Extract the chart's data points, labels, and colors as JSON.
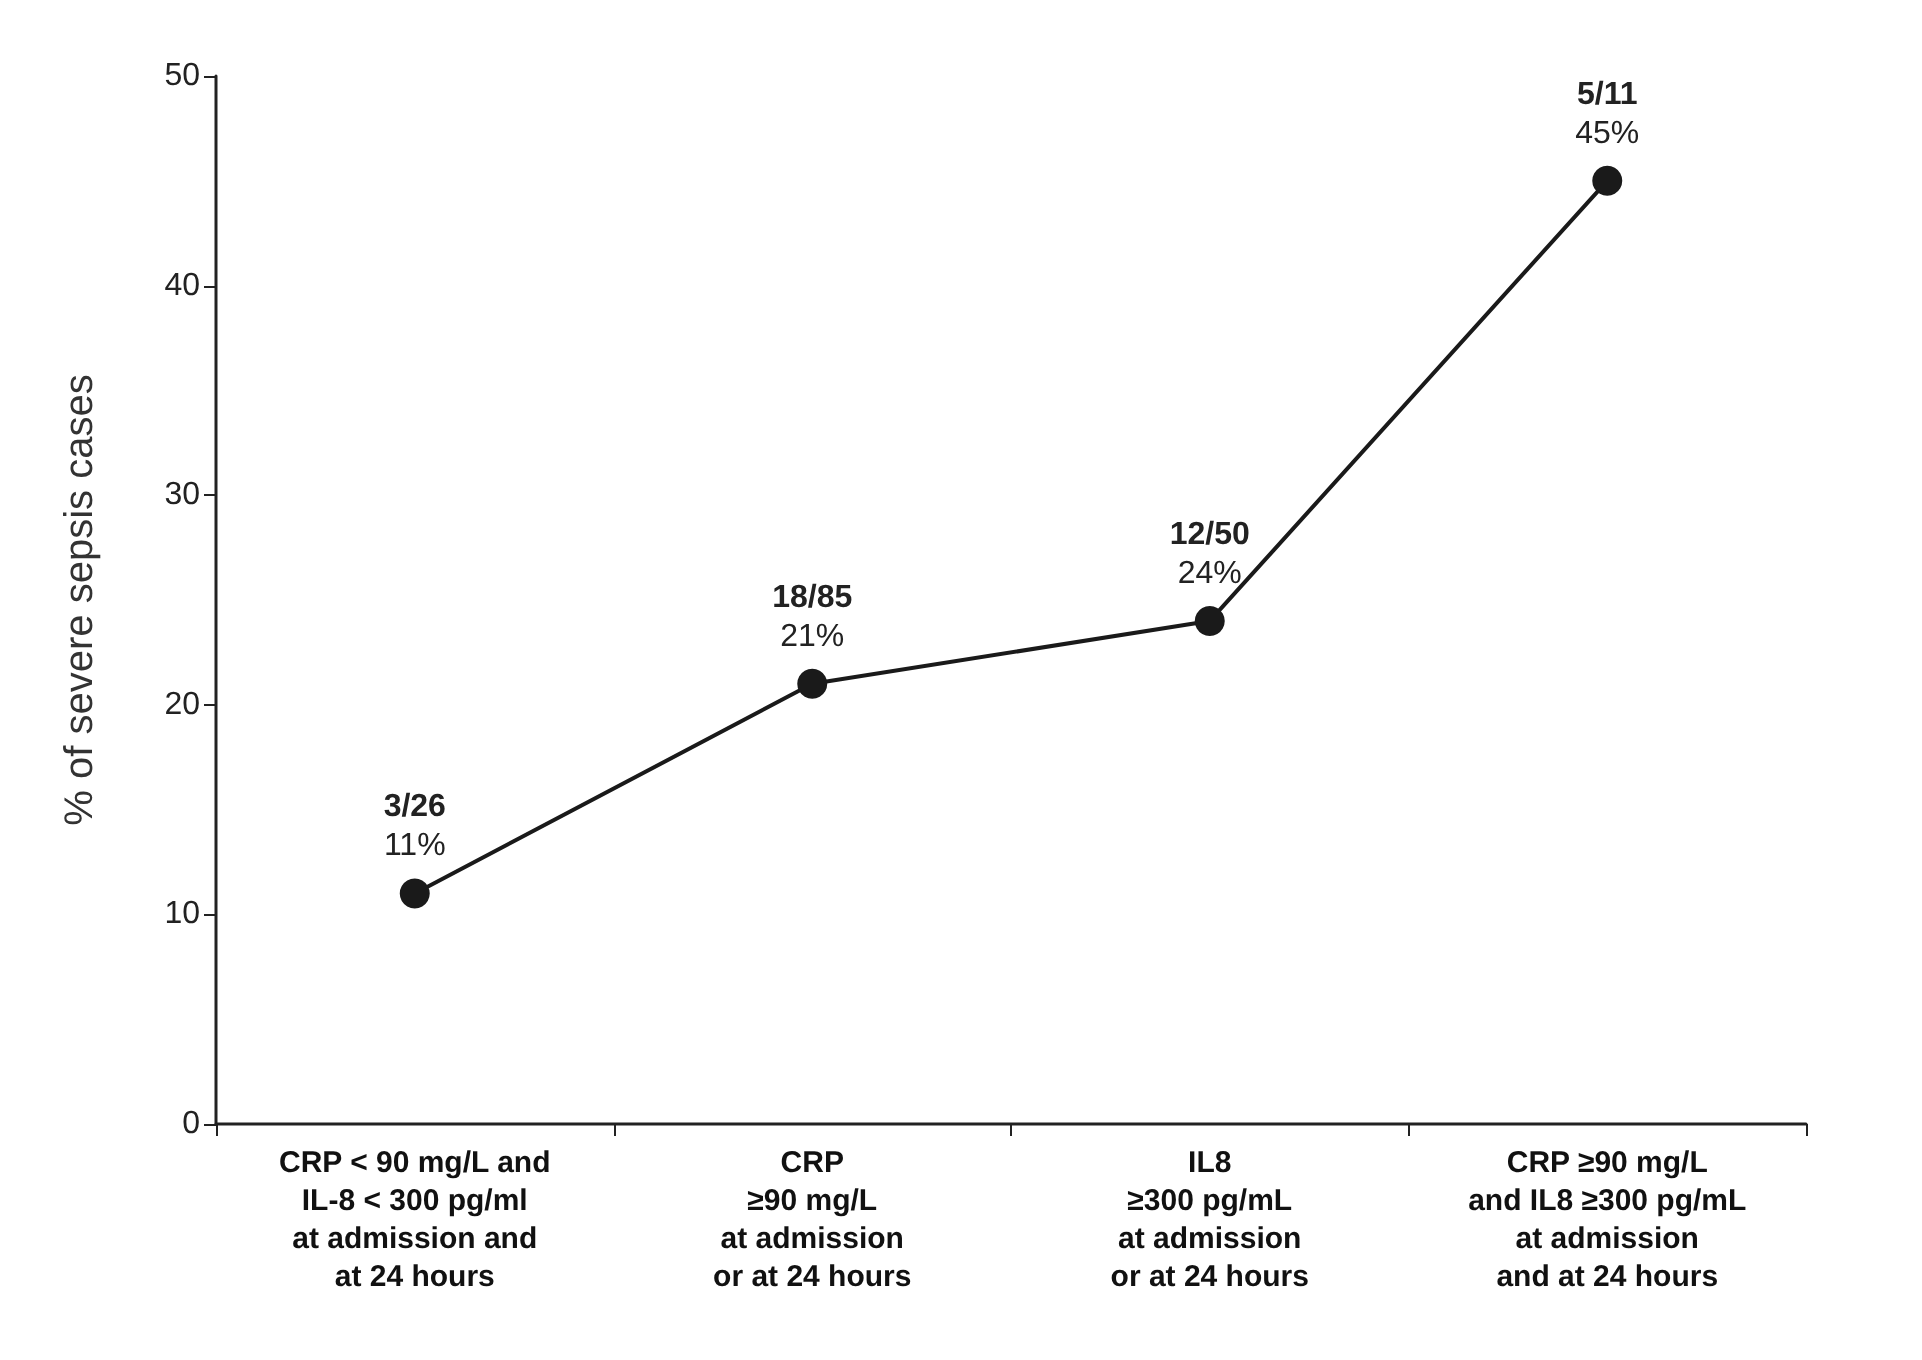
{
  "chart_data": {
    "type": "line",
    "ylabel": "% of severe sepsis cases",
    "categories": [
      "CRP < 90 mg/L and\nIL-8 < 300 pg/ml\nat admission and\nat 24 hours",
      "CRP\n≥90 mg/L\nat admission\nor at 24 hours",
      "IL8\n≥300 pg/mL\nat admission\nor at 24 hours",
      "CRP ≥90 mg/L\nand IL8 ≥300 pg/mL\nat admission\nand at 24 hours"
    ],
    "series": [
      {
        "color": "#1a1a1a",
        "values": [
          11,
          21,
          24,
          45
        ],
        "value_labels": [
          "11%",
          "21%",
          "24%",
          "45%"
        ]
      }
    ],
    "ylim": [
      0,
      50
    ],
    "yticks": [
      0,
      10,
      20,
      30,
      40,
      50
    ],
    "grid": false,
    "marker": "circle",
    "line_style": "solid",
    "annotations": [
      {
        "text": "3/26",
        "x": "CRP < 90 mg/L and\nIL-8 < 300 pg/ml\nat admission and\nat 24 hours",
        "y": 11
      },
      {
        "text": "18/85",
        "x": "CRP\n≥90 mg/L\nat admission\nor at 24 hours",
        "y": 21
      },
      {
        "text": "12/50",
        "x": "IL8\n≥300 pg/mL\nat admission\nor at 24 hours",
        "y": 24
      },
      {
        "text": "5/11",
        "x": "CRP ≥90 mg/L\nand IL8 ≥300 pg/mL\nat admission\nand at 24 hours",
        "y": 45
      }
    ]
  }
}
